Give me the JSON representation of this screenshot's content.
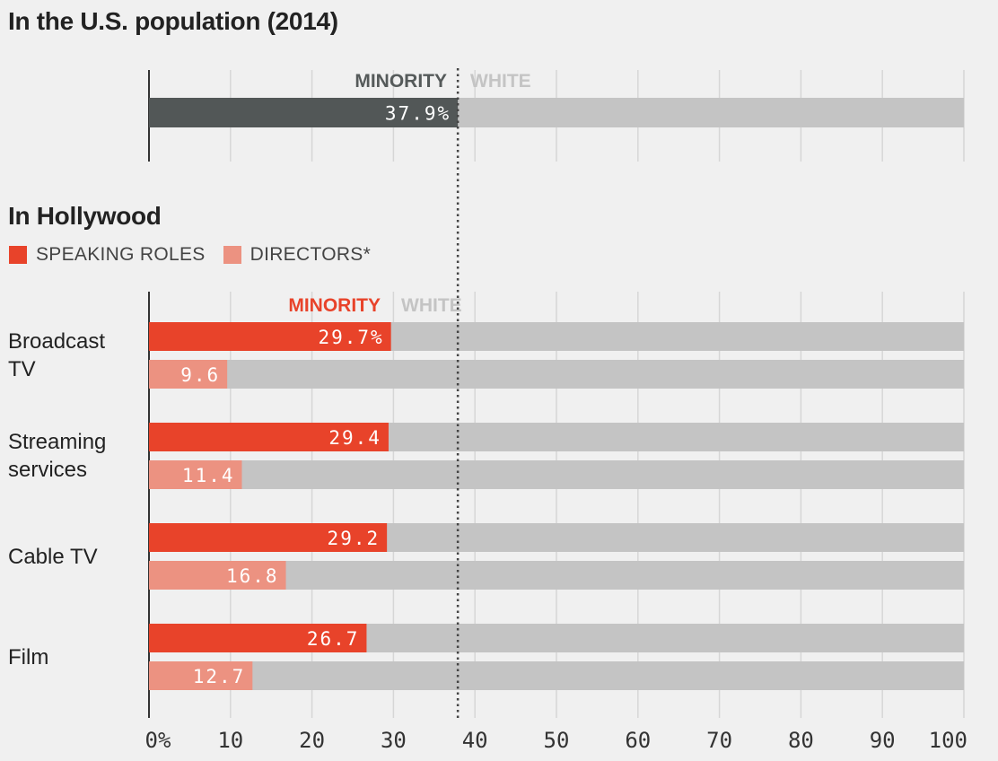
{
  "headings": {
    "us": "In the U.S. population (2014)",
    "hollywood": "In Hollywood"
  },
  "legend": [
    {
      "label": "SPEAKING ROLES",
      "color": "#e8432a"
    },
    {
      "label": "DIRECTORS*",
      "color": "#ec9281"
    }
  ],
  "colors": {
    "background": "#f0f0f0",
    "white_share": "#c4c4c4",
    "us_minority": "#525757",
    "speaking": "#e8432a",
    "directors": "#ec9281",
    "gridline": "#d6d6d6",
    "axis": "#333333"
  },
  "chart_data": [
    {
      "type": "bar",
      "orientation": "horizontal",
      "stacked_to": 100,
      "segment_labels": {
        "minority": "MINORITY",
        "white": "WHITE"
      },
      "series": [
        {
          "values": [
            37.9
          ],
          "labels": [
            "37.9%"
          ]
        }
      ],
      "categories": [
        ""
      ],
      "xlim": [
        0,
        100
      ],
      "grid": true
    },
    {
      "type": "bar",
      "orientation": "horizontal",
      "stacked_to": 100,
      "segment_labels": {
        "minority": "MINORITY",
        "white": "WHITE"
      },
      "categories": [
        "Broadcast\nTV",
        "Streaming\nservices",
        "Cable TV",
        "Film"
      ],
      "series": [
        {
          "name": "SPEAKING ROLES",
          "values": [
            29.7,
            29.4,
            29.2,
            26.7
          ],
          "labels": [
            "29.7%",
            "29.4",
            "29.2",
            "26.7"
          ]
        },
        {
          "name": "DIRECTORS*",
          "values": [
            9.6,
            11.4,
            16.8,
            12.7
          ],
          "labels": [
            "9.6",
            "11.4",
            "16.8",
            "12.7"
          ]
        }
      ],
      "reference_line": 37.9,
      "xlim": [
        0,
        100
      ],
      "x_ticks": [
        "0%",
        "10",
        "20",
        "30",
        "40",
        "50",
        "60",
        "70",
        "80",
        "90",
        "100"
      ],
      "grid": true
    }
  ]
}
